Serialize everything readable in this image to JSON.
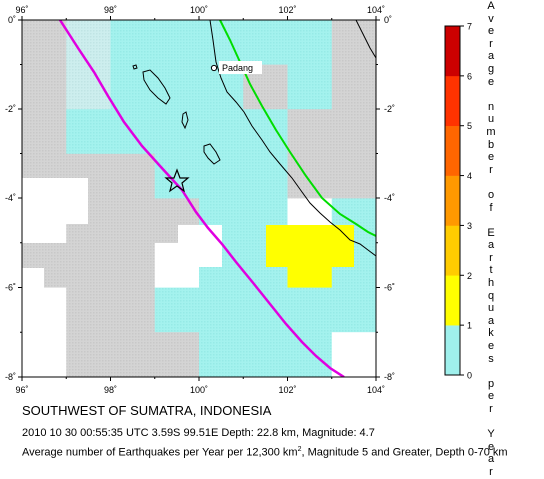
{
  "map": {
    "longitude_ticks": [
      "96˚",
      "98˚",
      "100˚",
      "102˚",
      "104˚"
    ],
    "latitude_ticks": [
      "0˚",
      "-2˚",
      "-4˚",
      "-6˚",
      "-8˚"
    ],
    "place_label": "Padang",
    "epicenter_marker": "star-icon",
    "colors": {
      "grid_cell_gray": "#d0d0d0",
      "grid_cell_cyan": "#9ff0ec",
      "grid_cell_yellow": "#ffff00",
      "trench_line": "#e000e0",
      "fault_line": "#00dd00",
      "coastline": "#000000"
    }
  },
  "scale": {
    "title_letters": [
      "A",
      "v",
      "e",
      "r",
      "a",
      "g",
      "e",
      "",
      "n",
      "u",
      "m",
      "b",
      "e",
      "r",
      "",
      "o",
      "f",
      "",
      "E",
      "a",
      "r",
      "t",
      "h",
      "q",
      "u",
      "a",
      "k",
      "e",
      "s",
      "",
      "p",
      "e",
      "r",
      "",
      "Y",
      "e",
      "a",
      "r"
    ],
    "tick_labels": [
      "7",
      "6",
      "5",
      "4",
      "3",
      "2",
      "1",
      "0"
    ],
    "colors": [
      "#9ff0ec",
      "#ffff00",
      "#ffcc00",
      "#ff9900",
      "#ff6600",
      "#ff3300",
      "#cc0000"
    ]
  },
  "caption": {
    "title": "SOUTHWEST OF SUMATRA, INDONESIA",
    "event": "2010 10 30 00:55:35 UTC 3.59S 99.51E Depth: 22.8 km, Magnitude: 4.7",
    "note": "Average number of Earthquakes per Year per 12,300 km², Magnitude 5 and Greater, Depth 0-70 km"
  }
}
